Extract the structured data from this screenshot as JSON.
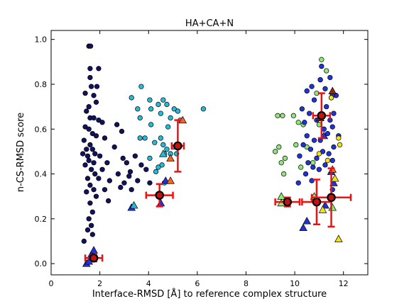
{
  "chart_data": {
    "type": "scatter",
    "title": "HA+CA+N",
    "xlabel": "Interface-RMSD [Å] to reference complex structure",
    "ylabel": "n-CS-RMSD score",
    "xlim": [
      0,
      13
    ],
    "ylim": [
      -0.05,
      1.04
    ],
    "xticks": [
      0,
      2,
      4,
      6,
      8,
      10,
      12
    ],
    "xtick_labels": [
      "0",
      "2",
      "4",
      "6",
      "8",
      "10",
      "12"
    ],
    "yticks": [
      0.0,
      0.2,
      0.4,
      0.6,
      0.8,
      1.0
    ],
    "ytick_labels": [
      "0.0",
      "0.2",
      "0.4",
      "0.6",
      "0.8",
      "1.0"
    ],
    "grid": false,
    "colors": {
      "navy": "#12125e",
      "cyan": "#26bad6",
      "blue": "#2233d6",
      "lightgreen": "#8ee876",
      "yellow": "#f2e21c",
      "orange": "#f06a26",
      "darkred": "#8c2a12",
      "errorbar": "#ee1111",
      "center": "#c41212"
    },
    "series": [
      {
        "marker": "circle",
        "color": "navy",
        "points": [
          [
            1.55,
            0.97
          ],
          [
            1.62,
            0.97
          ],
          [
            1.6,
            0.87
          ],
          [
            1.95,
            0.87
          ],
          [
            1.6,
            0.83
          ],
          [
            1.65,
            0.79
          ],
          [
            1.88,
            0.79
          ],
          [
            1.4,
            0.76
          ],
          [
            1.75,
            0.75
          ],
          [
            1.85,
            0.72
          ],
          [
            1.55,
            0.7
          ],
          [
            1.45,
            0.68
          ],
          [
            1.6,
            0.65
          ],
          [
            1.75,
            0.65
          ],
          [
            1.95,
            0.64
          ],
          [
            2.1,
            0.63
          ],
          [
            1.4,
            0.61
          ],
          [
            1.55,
            0.6
          ],
          [
            1.7,
            0.58
          ],
          [
            1.85,
            0.57
          ],
          [
            2.2,
            0.56
          ],
          [
            1.35,
            0.55
          ],
          [
            1.6,
            0.53
          ],
          [
            1.45,
            0.51
          ],
          [
            1.7,
            0.51
          ],
          [
            1.8,
            0.49
          ],
          [
            1.3,
            0.49
          ],
          [
            1.5,
            0.48
          ],
          [
            2.0,
            0.48
          ],
          [
            1.55,
            0.46
          ],
          [
            1.75,
            0.45
          ],
          [
            2.3,
            0.45
          ],
          [
            1.4,
            0.44
          ],
          [
            1.65,
            0.42
          ],
          [
            2.1,
            0.42
          ],
          [
            1.8,
            0.4
          ],
          [
            1.5,
            0.38
          ],
          [
            1.95,
            0.38
          ],
          [
            2.4,
            0.37
          ],
          [
            1.6,
            0.35
          ],
          [
            1.75,
            0.33
          ],
          [
            2.2,
            0.33
          ],
          [
            1.45,
            0.32
          ],
          [
            1.85,
            0.3
          ],
          [
            2.35,
            0.28
          ],
          [
            1.6,
            0.27
          ],
          [
            1.7,
            0.23
          ],
          [
            1.55,
            0.2
          ],
          [
            1.65,
            0.17
          ],
          [
            1.5,
            0.15
          ],
          [
            1.7,
            0.13
          ],
          [
            1.35,
            0.1
          ],
          [
            2.7,
            0.62
          ],
          [
            2.9,
            0.59
          ],
          [
            2.6,
            0.52
          ],
          [
            2.95,
            0.47
          ],
          [
            3.1,
            0.45
          ],
          [
            2.75,
            0.4
          ],
          [
            3.2,
            0.39
          ],
          [
            3.0,
            0.36
          ],
          [
            2.85,
            0.34
          ],
          [
            3.3,
            0.33
          ],
          [
            3.55,
            0.37
          ],
          [
            3.7,
            0.44
          ],
          [
            3.45,
            0.48
          ],
          [
            3.25,
            0.41
          ],
          [
            4.05,
            0.36
          ],
          [
            3.9,
            0.42
          ]
        ]
      },
      {
        "marker": "circle",
        "color": "cyan",
        "points": [
          [
            3.7,
            0.79
          ],
          [
            3.3,
            0.74
          ],
          [
            4.05,
            0.73
          ],
          [
            4.4,
            0.71
          ],
          [
            3.55,
            0.69
          ],
          [
            4.1,
            0.69
          ],
          [
            4.6,
            0.73
          ],
          [
            4.75,
            0.71
          ],
          [
            4.5,
            0.67
          ],
          [
            3.65,
            0.65
          ],
          [
            5.05,
            0.69
          ],
          [
            5.2,
            0.68
          ],
          [
            6.25,
            0.69
          ],
          [
            4.9,
            0.65
          ],
          [
            5.3,
            0.64
          ],
          [
            4.1,
            0.62
          ],
          [
            4.8,
            0.61
          ],
          [
            3.65,
            0.56
          ],
          [
            3.85,
            0.56
          ],
          [
            4.5,
            0.56
          ],
          [
            4.25,
            0.54
          ],
          [
            4.6,
            0.53
          ],
          [
            4.75,
            0.51
          ],
          [
            5.05,
            0.52
          ],
          [
            4.05,
            0.47
          ],
          [
            4.65,
            0.49
          ],
          [
            4.9,
            0.49
          ],
          [
            5.15,
            0.49
          ],
          [
            4.55,
            0.44
          ],
          [
            4.4,
            0.43
          ],
          [
            4.3,
            0.41
          ],
          [
            4.65,
            0.36
          ]
        ]
      },
      {
        "marker": "circle",
        "color": "lightgreen",
        "points": [
          [
            11.1,
            0.91
          ],
          [
            11.3,
            0.86
          ],
          [
            11.05,
            0.82
          ],
          [
            10.9,
            0.76
          ],
          [
            11.5,
            0.74
          ],
          [
            9.3,
            0.66
          ],
          [
            9.5,
            0.66
          ],
          [
            9.95,
            0.66
          ],
          [
            10.15,
            0.63
          ],
          [
            10.35,
            0.62
          ],
          [
            11.0,
            0.62
          ],
          [
            10.05,
            0.53
          ],
          [
            10.5,
            0.52
          ],
          [
            9.6,
            0.47
          ],
          [
            10.75,
            0.45
          ],
          [
            10.25,
            0.43
          ],
          [
            9.55,
            0.4
          ],
          [
            9.2,
            0.5
          ],
          [
            9.35,
            0.52
          ],
          [
            9.45,
            0.45
          ]
        ]
      },
      {
        "marker": "circle",
        "color": "blue",
        "points": [
          [
            11.1,
            0.88
          ],
          [
            11.45,
            0.83
          ],
          [
            11.05,
            0.82
          ],
          [
            10.7,
            0.79
          ],
          [
            11.25,
            0.78
          ],
          [
            10.5,
            0.77
          ],
          [
            11.7,
            0.75
          ],
          [
            11.55,
            0.75
          ],
          [
            10.8,
            0.73
          ],
          [
            11.3,
            0.7
          ],
          [
            10.3,
            0.69
          ],
          [
            10.6,
            0.67
          ],
          [
            11.6,
            0.67
          ],
          [
            10.9,
            0.64
          ],
          [
            11.45,
            0.64
          ],
          [
            10.4,
            0.63
          ],
          [
            11.55,
            0.61
          ],
          [
            11.2,
            0.6
          ],
          [
            11.35,
            0.58
          ],
          [
            10.5,
            0.57
          ],
          [
            11.8,
            0.57
          ],
          [
            10.8,
            0.55
          ],
          [
            11.05,
            0.55
          ],
          [
            10.35,
            0.53
          ],
          [
            11.6,
            0.52
          ],
          [
            10.65,
            0.51
          ],
          [
            11.15,
            0.5
          ],
          [
            11.4,
            0.49
          ],
          [
            10.2,
            0.48
          ],
          [
            10.9,
            0.47
          ],
          [
            11.55,
            0.46
          ],
          [
            10.55,
            0.45
          ],
          [
            11.25,
            0.44
          ],
          [
            10.75,
            0.43
          ],
          [
            11.0,
            0.42
          ],
          [
            10.45,
            0.4
          ],
          [
            10.7,
            0.37
          ],
          [
            11.55,
            0.33
          ],
          [
            10.15,
            0.36
          ]
        ]
      },
      {
        "marker": "circle",
        "color": "yellow",
        "points": [
          [
            11.5,
            0.74
          ],
          [
            11.8,
            0.56
          ],
          [
            11.85,
            0.53
          ],
          [
            11.0,
            0.49
          ],
          [
            11.35,
            0.46
          ]
        ]
      },
      {
        "marker": "triangle",
        "color": "blue",
        "points": [
          [
            1.45,
            0.0
          ],
          [
            1.55,
            0.01
          ],
          [
            1.65,
            0.04
          ],
          [
            1.75,
            0.06
          ],
          [
            3.3,
            0.25
          ],
          [
            4.5,
            0.27
          ],
          [
            4.7,
            0.37
          ],
          [
            11.2,
            0.57
          ],
          [
            11.5,
            0.41
          ],
          [
            11.6,
            0.36
          ],
          [
            11.25,
            0.26
          ],
          [
            10.5,
            0.19
          ],
          [
            10.35,
            0.16
          ]
        ]
      },
      {
        "marker": "triangle",
        "color": "lightgreen",
        "points": [
          [
            9.45,
            0.3
          ],
          [
            9.45,
            0.27
          ],
          [
            10.8,
            0.3
          ],
          [
            11.55,
            0.25
          ]
        ]
      },
      {
        "marker": "triangle",
        "color": "yellow",
        "points": [
          [
            11.8,
            0.11
          ],
          [
            11.15,
            0.24
          ],
          [
            11.65,
            0.38
          ]
        ]
      },
      {
        "marker": "triangle",
        "color": "cyan",
        "points": [
          [
            4.6,
            0.49
          ],
          [
            3.4,
            0.26
          ]
        ]
      },
      {
        "marker": "triangle",
        "color": "orange",
        "points": [
          [
            5.4,
            0.64
          ],
          [
            4.9,
            0.47
          ],
          [
            4.9,
            0.37
          ],
          [
            11.55,
            0.42
          ]
        ]
      },
      {
        "marker": "triangle",
        "color": "darkred",
        "points": [
          [
            11.55,
            0.77
          ],
          [
            11.05,
            0.65
          ]
        ]
      }
    ],
    "cluster_centers": [
      {
        "x": 1.75,
        "y": 0.025,
        "xerr": 0.35,
        "yerr": 0.015
      },
      {
        "x": 4.45,
        "y": 0.305,
        "xerr": 0.55,
        "yerr": 0.05
      },
      {
        "x": 5.2,
        "y": 0.525,
        "xerr": 0.25,
        "yerr": 0.115
      },
      {
        "x": 11.1,
        "y": 0.66,
        "xerr": 0.35,
        "yerr": 0.1
      },
      {
        "x": 9.7,
        "y": 0.275,
        "xerr": 0.5,
        "yerr": 0.02
      },
      {
        "x": 10.9,
        "y": 0.275,
        "xerr": 0.6,
        "yerr": 0.1
      },
      {
        "x": 11.5,
        "y": 0.295,
        "xerr": 0.8,
        "yerr": 0.13
      }
    ]
  }
}
